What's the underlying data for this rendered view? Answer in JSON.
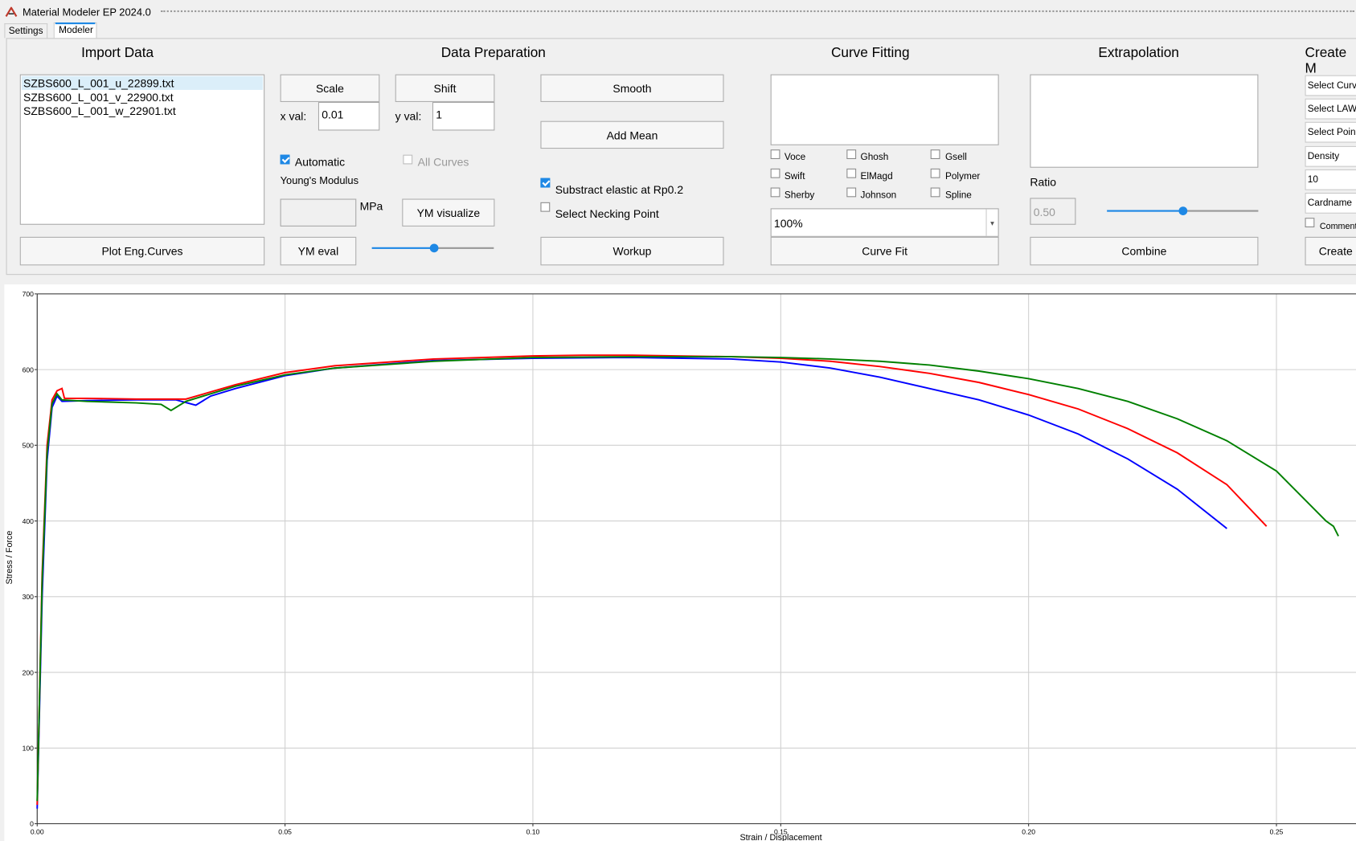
{
  "window": {
    "title": "Material Modeler EP 2024.0"
  },
  "tabs": [
    "Settings",
    "Modeler"
  ],
  "import_data": {
    "title": "Import Data",
    "files": [
      "SZBS600_L_001_u_22899.txt",
      "SZBS600_L_001_v_22900.txt",
      "SZBS600_L_001_w_22901.txt"
    ],
    "button": "Plot Eng.Curves"
  },
  "data_preparation": {
    "title": "Data Preparation",
    "scale": "Scale",
    "shift": "Shift",
    "x_val_label": "x val:",
    "x_val": "0.01",
    "y_val_label": "y val:",
    "y_val": "1",
    "automatic": "Automatic",
    "all_curves": "All Curves",
    "youngs_modulus": "Young's Modulus",
    "mpa": "MPa",
    "ym_visualize": "YM visualize",
    "ym_eval": "YM eval",
    "smooth": "Smooth",
    "add_mean": "Add Mean",
    "subtract_elastic": "Substract elastic at Rp0.2",
    "select_necking": "Select Necking Point",
    "workup": "Workup"
  },
  "curve_fitting": {
    "title": "Curve Fitting",
    "laws": [
      "Voce",
      "Ghosh",
      "Gsell",
      "Swift",
      "ElMagd",
      "Polymer",
      "Sherby",
      "Johnson",
      "Spline"
    ],
    "percent": "100%",
    "button": "Curve Fit"
  },
  "extrapolation": {
    "title": "Extrapolation",
    "ratio_label": "Ratio",
    "ratio": "0.50",
    "button": "Combine"
  },
  "create": {
    "title": "Create M",
    "fields": [
      "Select Curv",
      "Select LAW",
      "Select Poin",
      "Density",
      "10",
      "Cardname"
    ],
    "comment": "Comment",
    "button": "Create"
  },
  "chart": {
    "type": "line",
    "x_label": "Strain / Displacement",
    "y_label": "Stress / Force",
    "xlim": [
      0,
      0.266
    ],
    "ylim": [
      0,
      700
    ],
    "xticks": [
      {
        "value": 0,
        "label": "0.00"
      },
      {
        "value": 0.05,
        "label": "0.05"
      },
      {
        "value": 0.1,
        "label": "0.10"
      },
      {
        "value": 0.15,
        "label": "0.15"
      },
      {
        "value": 0.2,
        "label": "0.20"
      },
      {
        "value": 0.25,
        "label": "0.25"
      }
    ],
    "yticks": [
      0,
      100,
      200,
      300,
      400,
      500,
      600,
      700
    ],
    "grid": true,
    "series": [
      {
        "color": "#0000ff",
        "x": [
          0,
          0.001,
          0.002,
          0.003,
          0.004,
          0.005,
          0.01,
          0.02,
          0.028,
          0.032,
          0.035,
          0.04,
          0.05,
          0.06,
          0.08,
          0.1,
          0.12,
          0.14,
          0.15,
          0.16,
          0.17,
          0.18,
          0.19,
          0.2,
          0.21,
          0.22,
          0.23,
          0.24
        ],
        "values": [
          20,
          300,
          480,
          550,
          565,
          558,
          559,
          560,
          560,
          553,
          565,
          575,
          592,
          602,
          612,
          615,
          616,
          614,
          610,
          602,
          590,
          575,
          560,
          540,
          515,
          482,
          442,
          390
        ]
      },
      {
        "color": "#ff0000",
        "x": [
          0,
          0.001,
          0.002,
          0.003,
          0.004,
          0.005,
          0.0055,
          0.01,
          0.02,
          0.03,
          0.04,
          0.05,
          0.06,
          0.08,
          0.1,
          0.11,
          0.12,
          0.14,
          0.15,
          0.16,
          0.17,
          0.18,
          0.19,
          0.2,
          0.21,
          0.22,
          0.23,
          0.24,
          0.248
        ],
        "values": [
          25,
          330,
          500,
          560,
          572,
          575,
          562,
          562,
          561,
          561,
          580,
          596,
          605,
          614,
          618,
          619,
          619,
          617,
          615,
          611,
          604,
          595,
          583,
          567,
          548,
          522,
          490,
          448,
          393
        ]
      },
      {
        "color": "#008000",
        "x": [
          0,
          0.001,
          0.002,
          0.003,
          0.004,
          0.005,
          0.01,
          0.02,
          0.025,
          0.027,
          0.03,
          0.04,
          0.05,
          0.06,
          0.08,
          0.1,
          0.12,
          0.14,
          0.15,
          0.16,
          0.17,
          0.18,
          0.19,
          0.2,
          0.21,
          0.22,
          0.23,
          0.24,
          0.25,
          0.26,
          0.2615,
          0.2625
        ],
        "values": [
          30,
          320,
          490,
          555,
          568,
          560,
          558,
          556,
          554,
          546,
          558,
          578,
          593,
          602,
          611,
          616,
          617,
          617,
          616,
          614,
          611,
          606,
          598,
          588,
          575,
          558,
          535,
          506,
          466,
          400,
          393,
          380
        ]
      }
    ]
  }
}
